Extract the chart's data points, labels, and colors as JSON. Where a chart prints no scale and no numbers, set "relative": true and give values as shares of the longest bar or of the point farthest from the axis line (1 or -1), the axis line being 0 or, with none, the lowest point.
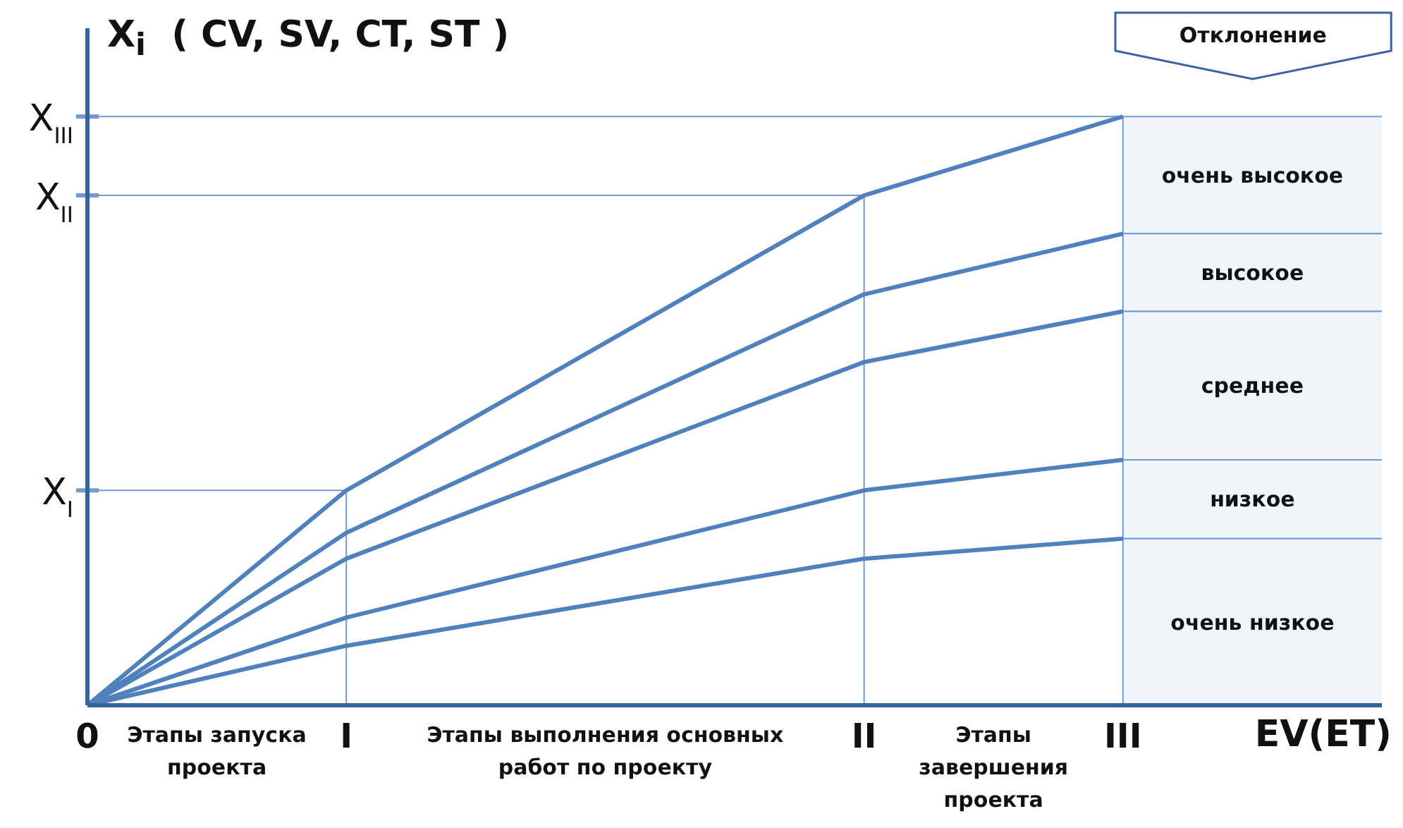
{
  "chart_data": {
    "type": "line",
    "relative": true,
    "ylabel": "X$_{i}$  ( CV, SV, CT, ST )",
    "xlabel": "EV(ET)",
    "categories": [
      "0",
      null,
      "I",
      null,
      null,
      null,
      "II",
      null,
      "III",
      null,
      null
    ],
    "series": [
      {
        "color": "#4f81bd",
        "x": [
          "0",
          "I",
          "II",
          "III"
        ],
        "values": [
          0,
          0.365,
          0.866,
          1
        ]
      },
      {
        "color": "#4f81bd",
        "x": [
          "0",
          "I",
          "II",
          "III"
        ],
        "values": [
          0,
          0.293,
          0.698,
          0.801
        ]
      },
      {
        "color": "#4f81bd",
        "x": [
          "0",
          "I",
          "II",
          "III"
        ],
        "values": [
          0,
          0.249,
          0.583,
          0.669
        ]
      },
      {
        "color": "#4f81bd",
        "x": [
          "0",
          "I",
          "II",
          "III"
        ],
        "values": [
          0,
          0.149,
          0.365,
          0.417
        ]
      },
      {
        "color": "#4f81bd",
        "x": [
          "0",
          "I",
          "II",
          "III"
        ],
        "values": [
          0,
          0.101,
          0.249,
          0.283
        ]
      }
    ],
    "ref_lines": [
      {
        "axis": "x",
        "value": "I",
        "color": "#7399d0"
      },
      {
        "axis": "x",
        "value": "II",
        "color": "#7399d0"
      },
      {
        "axis": "x",
        "value": "III",
        "color": "#7399d0"
      },
      {
        "axis": "y",
        "value": 0.365,
        "label": "X$_{I}$",
        "color": "#7399d0"
      },
      {
        "axis": "y",
        "value": 0.866,
        "label": "X$_{II}$",
        "color": "#7399d0"
      },
      {
        "axis": "y",
        "value": 1,
        "label": "X$_{III}$",
        "color": "#7399d0"
      }
    ],
    "bands": [
      {
        "axis": "y",
        "from": 0.801,
        "to": 1,
        "label": "очень высокое",
        "color": "#f1f5fb"
      },
      {
        "axis": "y",
        "from": 0.669,
        "to": 0.801,
        "label": "высокое",
        "color": "#f1f5fb"
      },
      {
        "axis": "y",
        "from": 0.417,
        "to": 0.669,
        "label": "среднее",
        "color": "#f1f5fb"
      },
      {
        "axis": "y",
        "from": 0.283,
        "to": 0.417,
        "label": "низкое",
        "color": "#f1f5fb"
      },
      {
        "axis": "y",
        "from": 0,
        "to": 0.283,
        "label": "очень низкое",
        "color": "#f1f5fb"
      }
    ],
    "annotations": [
      "Отклонение",
      "Этапы запуска проекта",
      "Этапы выполнения основных работ по проекту",
      "Этапы завершения проекта"
    ],
    "marker": "none",
    "line_style": "solid"
  }
}
